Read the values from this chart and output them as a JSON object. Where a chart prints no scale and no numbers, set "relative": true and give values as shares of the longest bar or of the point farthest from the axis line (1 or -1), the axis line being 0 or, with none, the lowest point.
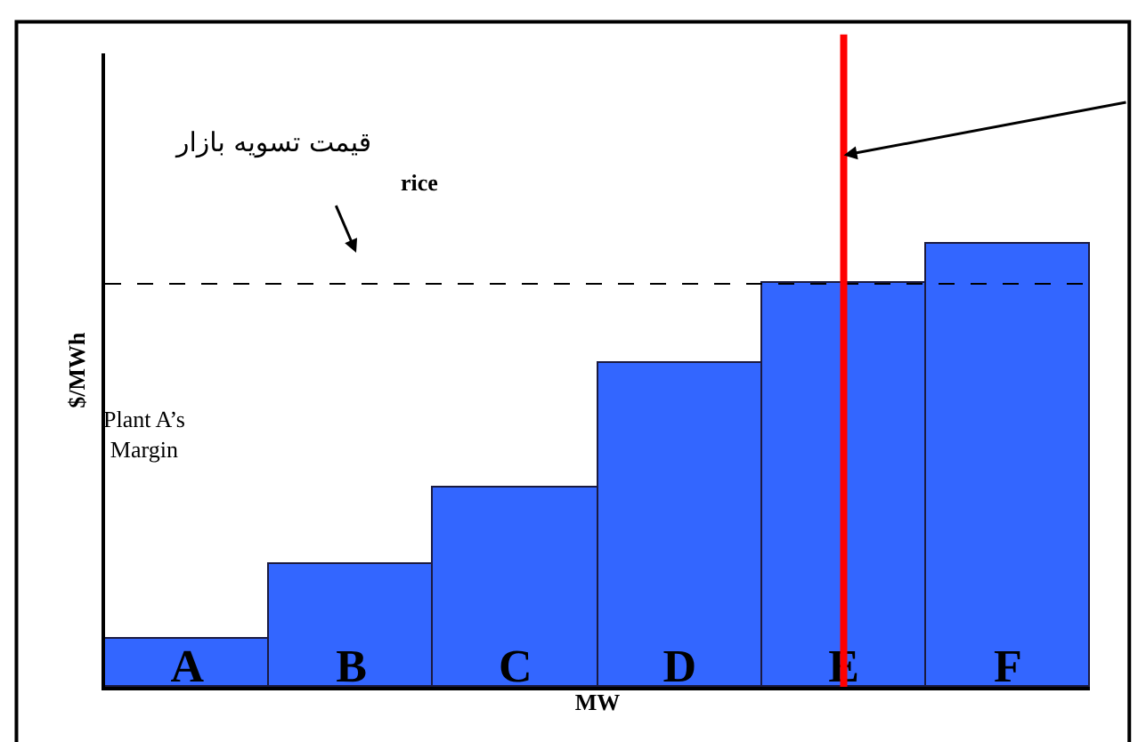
{
  "chart_data": {
    "type": "bar",
    "relative": true,
    "xlabel": "MW",
    "ylabel": "$/MWh",
    "categories": [
      "A",
      "B",
      "C",
      "D",
      "E",
      "F"
    ],
    "values": [
      0.108,
      0.278,
      0.45,
      0.73,
      0.912,
      1
    ],
    "color": "#3366ff",
    "ref_lines": [
      {
        "axis": "y",
        "value": 0.91,
        "color": "#000000",
        "line_style": "dashed"
      },
      {
        "axis": "x",
        "value": "E",
        "color": "#ff0000",
        "line_style": "solid"
      }
    ],
    "annotations": [
      "قیمت تسویه بازار",
      "rice",
      "Plant A’s Margin"
    ]
  }
}
